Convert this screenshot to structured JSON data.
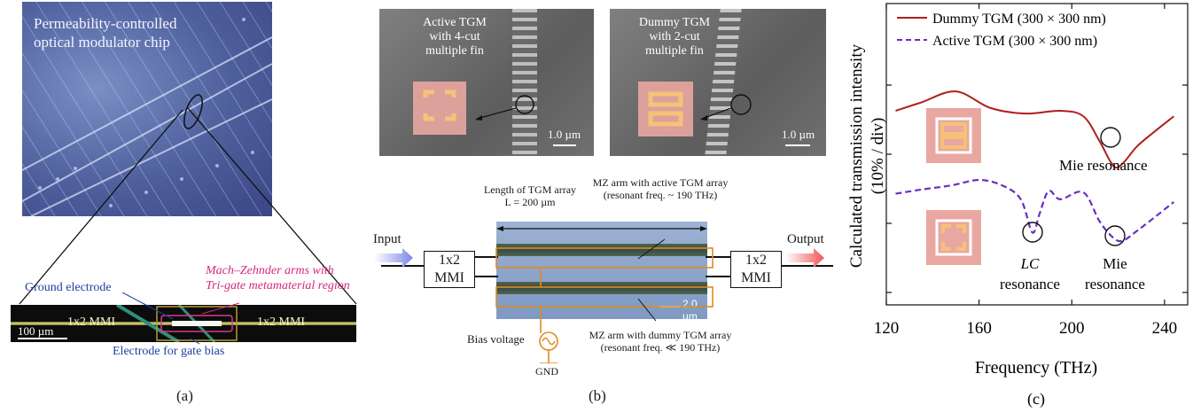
{
  "panel_a": {
    "chip_title_1": "Permeability-controlled",
    "chip_title_2": "optical modulator chip",
    "ground_electrode": "Ground electrode",
    "mz_arms_1": "Mach–Zehnder arms with",
    "mz_arms_2": "Tri-gate metamaterial region",
    "mmi_left": "1x2 MMI",
    "mmi_right": "1x2 MMI",
    "scale": "100 µm",
    "gate_electrode": "Electrode for gate bias",
    "label": "(a)"
  },
  "panel_b": {
    "active_1": "Active TGM",
    "active_2": "with 4-cut",
    "active_3": "multiple fin",
    "dummy_1": "Dummy TGM",
    "dummy_2": "with 2-cut",
    "dummy_3": "multiple fin",
    "scale_sem": "1.0 µm",
    "length_1": "Length of TGM array",
    "length_2": "L = 200 µm",
    "arm_active_1": "MZ arm with active TGM array",
    "arm_active_2": "(resonant freq. ~ 190 THz)",
    "arm_dummy_1": "MZ arm with dummy TGM array",
    "arm_dummy_2": "(resonant freq. ≪ 190 THz)",
    "input": "Input",
    "output": "Output",
    "mmi_1": "1x2",
    "mmi_2": "MMI",
    "scale_chip": "2.0 µm",
    "bias": "Bias voltage",
    "gnd": "GND",
    "label": "(b)"
  },
  "panel_c": {
    "legend_dummy": "Dummy TGM (300 × 300 nm)",
    "legend_active": "Active TGM (300 × 300 nm)",
    "ylabel_1": "Calculated transmission intensity",
    "ylabel_2": "(10% / div)",
    "xlabel": "Frequency (THz)",
    "mie_top": "Mie resonance",
    "lc_1": "LC",
    "lc_2": "resonance",
    "mie_1": "Mie",
    "mie_2": "resonance",
    "label": "(c)",
    "colors": {
      "dummy": "#b01e1e",
      "active": "#6a2fc0",
      "unit_cell": "#e9a7a1",
      "ring": "#f5c278"
    }
  },
  "chart_data": {
    "type": "line",
    "xlabel": "Frequency (THz)",
    "ylabel": "Calculated transmission intensity (10% / div)",
    "xlim": [
      120,
      250
    ],
    "xticks": [
      120,
      160,
      200,
      240
    ],
    "series": [
      {
        "name": "Dummy TGM (300 × 300 nm)",
        "style": "solid",
        "x": [
          124,
          135,
          150,
          165,
          180,
          195,
          205,
          212,
          218,
          222,
          228,
          235,
          244
        ],
        "y": [
          0.0,
          0.6,
          1.4,
          0.2,
          -0.2,
          0.0,
          -0.4,
          -2.2,
          -4.0,
          -3.8,
          -2.6,
          -1.6,
          -0.4
        ]
      },
      {
        "name": "Active TGM (300 × 300 nm)",
        "style": "dashed",
        "x": [
          124,
          135,
          148,
          160,
          170,
          178,
          183,
          186,
          190,
          195,
          205,
          212,
          218,
          222,
          228,
          235,
          244
        ],
        "y": [
          -6.0,
          -5.7,
          -5.4,
          -5.0,
          -5.4,
          -6.4,
          -8.8,
          -7.5,
          -5.8,
          -6.4,
          -5.9,
          -8.0,
          -9.2,
          -9.4,
          -8.7,
          -7.8,
          -6.6
        ]
      }
    ]
  }
}
